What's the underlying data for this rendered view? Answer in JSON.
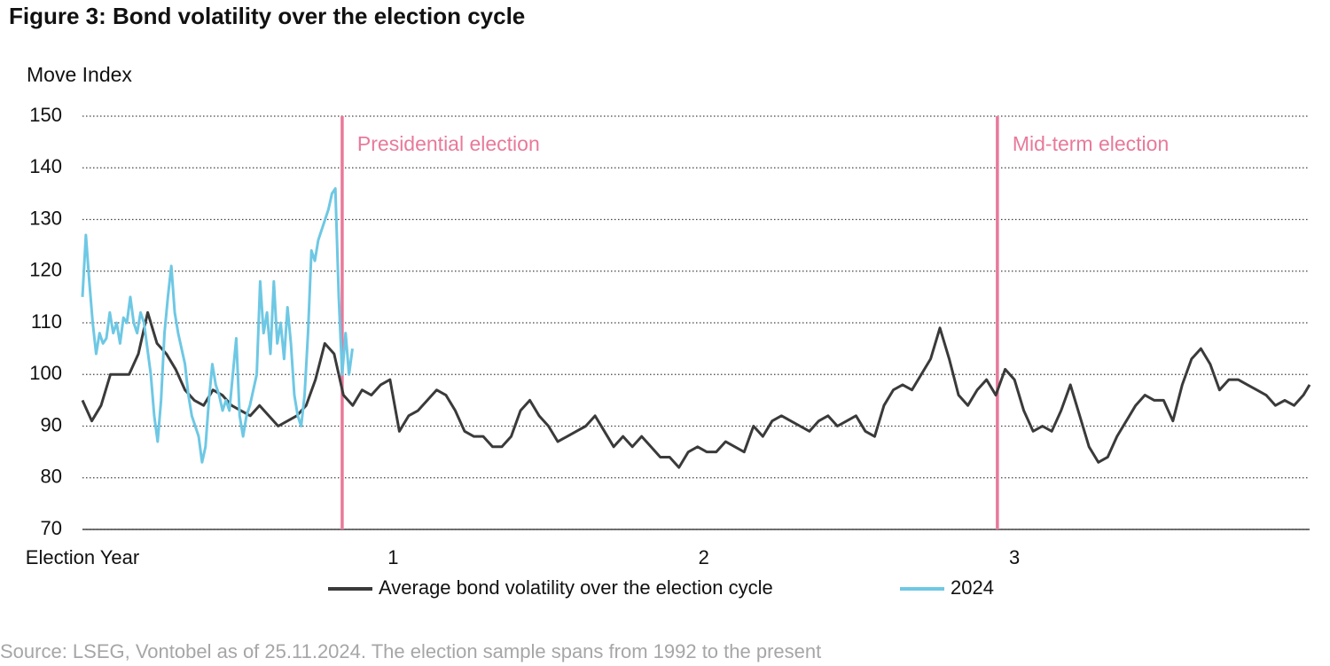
{
  "chart_data": {
    "type": "line",
    "title": "Figure 3: Bond volatility over the election cycle",
    "y_label": "Move Index",
    "source": "Source: LSEG, Vontobel as of 25.11.2024. The election sample spans from 1992 to the present",
    "xlim": [
      0,
      3.95
    ],
    "xticks": [
      {
        "value": 0,
        "label": "Election Year"
      },
      1,
      2,
      3
    ],
    "ylim": [
      70,
      150
    ],
    "yticks": [
      70,
      80,
      90,
      100,
      110,
      120,
      130,
      140,
      150
    ],
    "grid": true,
    "legend": "bottom",
    "annotations": [
      {
        "x": 0.836,
        "label": "Presidential election",
        "color": "#e8799a"
      },
      {
        "x": 2.945,
        "label": "Mid-term election",
        "color": "#e8799a"
      }
    ],
    "series": [
      {
        "name": "Average bond volatility over the election cycle",
        "color": "#3a3a3a",
        "x": [
          0,
          0.03,
          0.06,
          0.09,
          0.12,
          0.15,
          0.18,
          0.21,
          0.24,
          0.27,
          0.3,
          0.33,
          0.36,
          0.39,
          0.42,
          0.45,
          0.48,
          0.51,
          0.54,
          0.57,
          0.6,
          0.63,
          0.66,
          0.69,
          0.72,
          0.75,
          0.78,
          0.81,
          0.84,
          0.87,
          0.9,
          0.93,
          0.96,
          0.99,
          1.02,
          1.05,
          1.08,
          1.11,
          1.14,
          1.17,
          1.2,
          1.23,
          1.26,
          1.29,
          1.32,
          1.35,
          1.38,
          1.41,
          1.44,
          1.47,
          1.5,
          1.53,
          1.56,
          1.59,
          1.62,
          1.65,
          1.68,
          1.71,
          1.74,
          1.77,
          1.8,
          1.83,
          1.86,
          1.89,
          1.92,
          1.95,
          1.98,
          2.01,
          2.04,
          2.07,
          2.1,
          2.13,
          2.16,
          2.19,
          2.22,
          2.25,
          2.28,
          2.31,
          2.34,
          2.37,
          2.4,
          2.43,
          2.46,
          2.49,
          2.52,
          2.55,
          2.58,
          2.61,
          2.64,
          2.67,
          2.7,
          2.73,
          2.76,
          2.79,
          2.82,
          2.85,
          2.88,
          2.91,
          2.94,
          2.97,
          3.0,
          3.03,
          3.06,
          3.09,
          3.12,
          3.15,
          3.18,
          3.21,
          3.24,
          3.27,
          3.3,
          3.33,
          3.36,
          3.39,
          3.42,
          3.45,
          3.48,
          3.51,
          3.54,
          3.57,
          3.6,
          3.63,
          3.66,
          3.69,
          3.72,
          3.75,
          3.78,
          3.81,
          3.84,
          3.87,
          3.9,
          3.93,
          3.95
        ],
        "values": [
          95,
          91,
          94,
          100,
          100,
          100,
          104,
          112,
          106,
          104,
          101,
          97,
          95,
          94,
          97,
          96,
          94,
          93,
          92,
          94,
          92,
          90,
          91,
          92,
          94,
          99,
          106,
          104,
          96,
          94,
          97,
          96,
          98,
          99,
          89,
          92,
          93,
          95,
          97,
          96,
          93,
          89,
          88,
          88,
          86,
          86,
          88,
          93,
          95,
          92,
          90,
          87,
          88,
          89,
          90,
          92,
          89,
          86,
          88,
          86,
          88,
          86,
          84,
          84,
          82,
          85,
          86,
          85,
          85,
          87,
          86,
          85,
          90,
          88,
          91,
          92,
          91,
          90,
          89,
          91,
          92,
          90,
          91,
          92,
          89,
          88,
          94,
          97,
          98,
          97,
          100,
          103,
          109,
          103,
          96,
          94,
          97,
          99,
          96,
          101,
          99,
          93,
          89,
          90,
          89,
          93,
          98,
          92,
          86,
          83,
          84,
          88,
          91,
          94,
          96,
          95,
          95,
          91,
          98,
          103,
          105,
          102,
          97,
          99,
          99,
          98,
          97,
          96,
          94,
          95,
          94,
          96,
          98
        ]
      },
      {
        "name": "2024",
        "color": "#6ec8e4",
        "x": [
          0,
          0.011,
          0.022,
          0.033,
          0.044,
          0.055,
          0.066,
          0.077,
          0.088,
          0.099,
          0.11,
          0.121,
          0.132,
          0.143,
          0.154,
          0.165,
          0.176,
          0.187,
          0.198,
          0.209,
          0.22,
          0.231,
          0.242,
          0.253,
          0.264,
          0.275,
          0.286,
          0.297,
          0.308,
          0.319,
          0.33,
          0.341,
          0.352,
          0.363,
          0.374,
          0.385,
          0.396,
          0.407,
          0.418,
          0.429,
          0.44,
          0.451,
          0.462,
          0.473,
          0.484,
          0.495,
          0.506,
          0.517,
          0.528,
          0.539,
          0.55,
          0.561,
          0.572,
          0.583,
          0.594,
          0.605,
          0.616,
          0.627,
          0.638,
          0.649,
          0.66,
          0.671,
          0.682,
          0.693,
          0.704,
          0.715,
          0.726,
          0.737,
          0.748,
          0.759,
          0.77,
          0.781,
          0.792,
          0.803,
          0.814,
          0.825,
          0.836,
          0.847,
          0.858,
          0.869
        ],
        "values": [
          115,
          127,
          118,
          110,
          104,
          108,
          106,
          107,
          112,
          108,
          110,
          106,
          111,
          110,
          115,
          110,
          108,
          112,
          110,
          105,
          100,
          92,
          87,
          95,
          108,
          115,
          121,
          112,
          108,
          105,
          102,
          96,
          92,
          90,
          88,
          83,
          86,
          95,
          102,
          98,
          96,
          93,
          95,
          93,
          100,
          107,
          92,
          88,
          92,
          94,
          97,
          100,
          118,
          108,
          112,
          104,
          118,
          106,
          110,
          103,
          113,
          106,
          96,
          92,
          90,
          96,
          108,
          124,
          122,
          126,
          128,
          130,
          132,
          135,
          136,
          115,
          100,
          108,
          100,
          105
        ]
      }
    ]
  }
}
